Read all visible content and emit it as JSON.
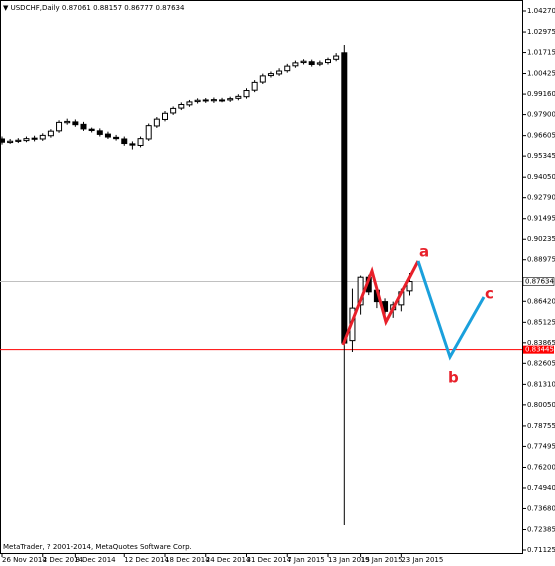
{
  "chart_data": {
    "type": "candlestick",
    "title": "USDCHF,Daily",
    "footer": "MetaTrader, ? 2001-2014, MetaQuotes Software Corp.",
    "categories": [
      "26 Nov 2014",
      null,
      null,
      null,
      null,
      "2 Dec 2014",
      null,
      null,
      null,
      "8 Dec 2014",
      null,
      null,
      null,
      null,
      null,
      "12 Dec 2014",
      null,
      null,
      null,
      null,
      "18 Dec 2014",
      null,
      null,
      null,
      null,
      "24 Dec 2014",
      null,
      null,
      null,
      null,
      "31 Dec 2014",
      null,
      null,
      null,
      null,
      "7 Jan 2015",
      null,
      null,
      null,
      null,
      "13 Jan 2015",
      null,
      null,
      null,
      "19 Jan 2015",
      null,
      null,
      null,
      null,
      "23 Jan 2015",
      null
    ],
    "open": [
      0.964,
      0.9618,
      0.9625,
      0.963,
      0.9645,
      0.964,
      0.966,
      0.969,
      0.974,
      0.9745,
      0.973,
      0.97,
      0.969,
      0.967,
      0.965,
      0.964,
      0.961,
      0.96,
      0.964,
      0.972,
      0.976,
      0.98,
      0.983,
      0.985,
      0.987,
      0.988,
      0.9875,
      0.988,
      0.988,
      0.989,
      0.99,
      0.994,
      0.999,
      1.003,
      1.004,
      1.006,
      1.009,
      1.011,
      1.0115,
      1.01,
      1.011,
      1.013,
      1.017,
      0.84,
      0.862,
      0.879,
      0.871,
      0.864,
      0.859,
      0.862,
      0.87061
    ],
    "high": [
      0.9655,
      0.964,
      0.9645,
      0.9655,
      0.966,
      0.9675,
      0.97,
      0.9755,
      0.9765,
      0.976,
      0.9745,
      0.971,
      0.9705,
      0.9685,
      0.9665,
      0.9655,
      0.9625,
      0.9655,
      0.9735,
      0.9775,
      0.9812,
      0.984,
      0.9865,
      0.988,
      0.989,
      0.9892,
      0.9895,
      0.9893,
      0.99,
      0.9915,
      0.9952,
      1.0002,
      1.0042,
      1.0055,
      1.0075,
      1.0102,
      1.0122,
      1.013,
      1.0128,
      1.0122,
      1.014,
      1.0168,
      1.0218,
      0.872,
      0.88,
      0.8805,
      0.8725,
      0.866,
      0.864,
      0.872,
      0.88157
    ],
    "low": [
      0.9605,
      0.961,
      0.9615,
      0.962,
      0.9625,
      0.9628,
      0.9648,
      0.9678,
      0.9728,
      0.9715,
      0.969,
      0.968,
      0.9655,
      0.964,
      0.963,
      0.9598,
      0.9575,
      0.9588,
      0.9628,
      0.9708,
      0.9748,
      0.9788,
      0.9818,
      0.9838,
      0.9858,
      0.9862,
      0.9862,
      0.9866,
      0.9868,
      0.9878,
      0.9888,
      0.9928,
      0.9978,
      1.0018,
      1.0028,
      1.0048,
      1.0078,
      1.0098,
      1.0085,
      1.0088,
      1.0098,
      1.0118,
      0.7266,
      0.833,
      0.856,
      0.868,
      0.86,
      0.852,
      0.854,
      0.858,
      0.86777
    ],
    "close": [
      0.962,
      0.9626,
      0.9632,
      0.9642,
      0.9638,
      0.9662,
      0.9688,
      0.9742,
      0.9748,
      0.9728,
      0.9702,
      0.9692,
      0.9668,
      0.9652,
      0.9642,
      0.9612,
      0.9602,
      0.9642,
      0.9722,
      0.9762,
      0.9798,
      0.9828,
      0.9852,
      0.9868,
      0.9878,
      0.9874,
      0.9882,
      0.9878,
      0.9888,
      0.9902,
      0.9938,
      0.9988,
      1.0028,
      1.0042,
      1.0058,
      1.0088,
      1.0108,
      1.0118,
      1.0098,
      1.0108,
      1.0128,
      1.015,
      0.8385,
      0.86,
      0.879,
      0.87,
      0.864,
      0.858,
      0.862,
      0.87,
      0.87634
    ],
    "ylim": [
      0.70941,
      1.04946
    ],
    "yticks": [
      {
        "value": 1.0427,
        "label": "1.04270"
      },
      {
        "value": 1.02975,
        "label": "1.02975"
      },
      {
        "value": 1.01715,
        "label": "1.01715"
      },
      {
        "value": 1.00425,
        "label": "1.00425"
      },
      {
        "value": 0.9916,
        "label": "0.99160"
      },
      {
        "value": 0.979,
        "label": "0.97900"
      },
      {
        "value": 0.96605,
        "label": "0.96605"
      },
      {
        "value": 0.95345,
        "label": "0.95345"
      },
      {
        "value": 0.9405,
        "label": "0.94050"
      },
      {
        "value": 0.9279,
        "label": "0.92790"
      },
      {
        "value": 0.91495,
        "label": "0.91495"
      },
      {
        "value": 0.90235,
        "label": "0.90235"
      },
      {
        "value": 0.88975,
        "label": "0.88975"
      },
      {
        "value": 0.8642,
        "label": "0.86420"
      },
      {
        "value": 0.85125,
        "label": "0.85125"
      },
      {
        "value": 0.83865,
        "label": "0.83865"
      },
      {
        "value": 0.82605,
        "label": "0.82605"
      },
      {
        "value": 0.8131,
        "label": "0.81310"
      },
      {
        "value": 0.8005,
        "label": "0.80050"
      },
      {
        "value": 0.78755,
        "label": "0.78755"
      },
      {
        "value": 0.77495,
        "label": "0.77495"
      },
      {
        "value": 0.762,
        "label": "0.76200"
      },
      {
        "value": 0.7494,
        "label": "0.74940"
      },
      {
        "value": 0.7368,
        "label": "0.73680"
      },
      {
        "value": 0.72385,
        "label": "0.72385"
      },
      {
        "value": 0.71125,
        "label": "0.71125"
      }
    ],
    "horizontal_lines": [
      {
        "value": 0.83445,
        "color": "#ff0000"
      }
    ],
    "annotations": [
      {
        "text": "a",
        "color": "#e8202a"
      },
      {
        "text": "b",
        "color": "#e8202a"
      },
      {
        "text": "c",
        "color": "#e8202a"
      }
    ]
  }
}
